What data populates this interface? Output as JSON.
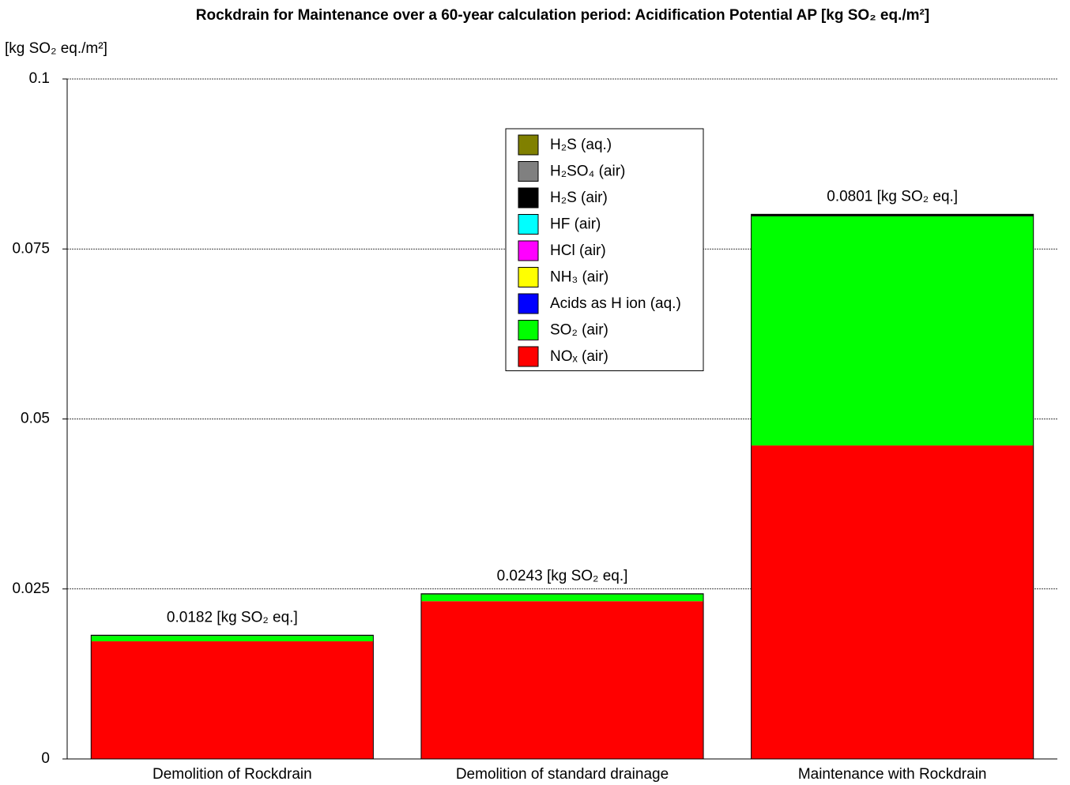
{
  "chart_data": {
    "type": "stacked_bar",
    "title": "Rockdrain for Maintenance over a 60-year calculation period: Acidification Potential AP [kg SO₂ eq./m²]",
    "y_label": "[kg SO₂ eq./m²]",
    "categories": [
      "Demolition of Rockdrain",
      "Demolition of standard drainage",
      "Maintenance with Rockdrain"
    ],
    "series": [
      {
        "name": "NOₓ (air)",
        "color": "#ff0000",
        "values": [
          0.0173,
          0.0232,
          0.0461
        ]
      },
      {
        "name": "SO₂ (air)",
        "color": "#00ff00",
        "values": [
          0.0008,
          0.001,
          0.0337
        ]
      },
      {
        "name": "Acids as H ion (aq.)",
        "color": "#0000ff",
        "values": [
          0,
          0,
          0
        ]
      },
      {
        "name": "NH₃ (air)",
        "color": "#ffff00",
        "values": [
          0,
          0,
          0
        ]
      },
      {
        "name": "HCl (air)",
        "color": "#ff00ff",
        "values": [
          0,
          0,
          0
        ]
      },
      {
        "name": "HF (air)",
        "color": "#00ffff",
        "values": [
          0,
          0,
          0
        ]
      },
      {
        "name": "H₂S (air)",
        "color": "#000000",
        "values": [
          0.0001,
          0.0001,
          0.0003
        ]
      },
      {
        "name": "H₂SO₄ (air)",
        "color": "#808080",
        "values": [
          0,
          0,
          0
        ]
      },
      {
        "name": "H₂S (aq.)",
        "color": "#808000",
        "values": [
          0,
          0,
          0
        ]
      }
    ],
    "totals": [
      0.0182,
      0.0243,
      0.0801
    ],
    "total_labels": [
      "0.0182 [kg SO₂ eq.]",
      "0.0243 [kg SO₂ eq.]",
      "0.0801 [kg SO₂ eq.]"
    ],
    "ylim": [
      0,
      0.1
    ],
    "yticks": [
      0,
      0.025,
      0.05,
      0.075,
      0.1
    ],
    "grid": true,
    "legend": "upper center"
  }
}
